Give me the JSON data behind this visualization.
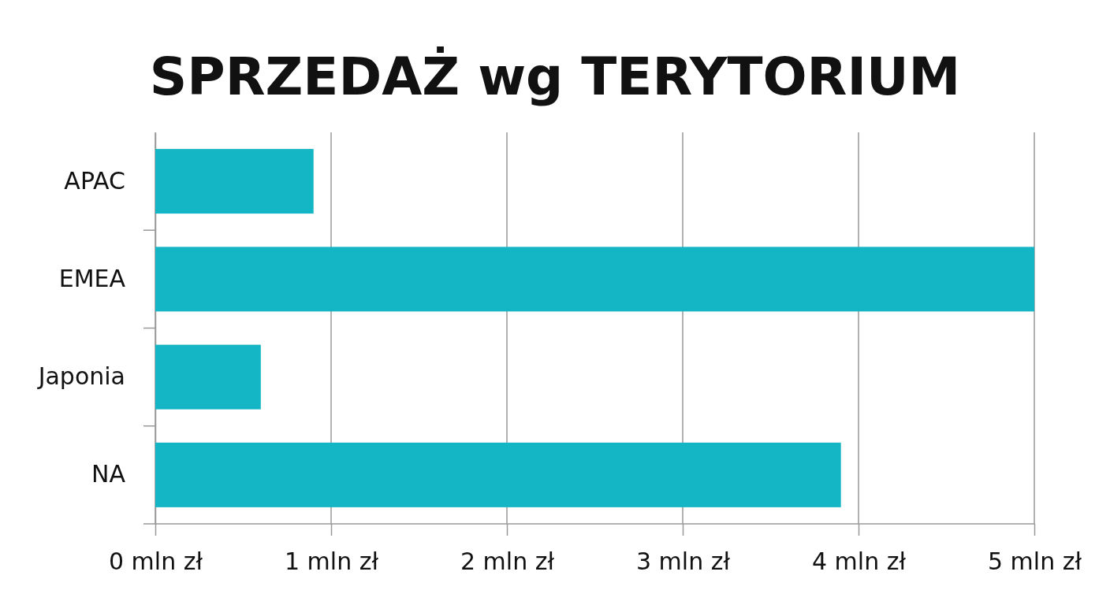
{
  "chart_data": {
    "type": "bar",
    "orientation": "horizontal",
    "title": "SPRZEDAŻ wg TERYTORIUM",
    "categories": [
      "APAC",
      "EMEA",
      "Japonia",
      "NA"
    ],
    "values": [
      0.9,
      5.0,
      0.6,
      3.9
    ],
    "color": "#14b5c4",
    "xlim": [
      0,
      5
    ],
    "xticks": [
      {
        "value": 0,
        "label": "0 mln zł"
      },
      {
        "value": 1,
        "label": "1 mln zł"
      },
      {
        "value": 2,
        "label": "2 mln zł"
      },
      {
        "value": 3,
        "label": "3 mln zł"
      },
      {
        "value": 4,
        "label": "4 mln zł"
      },
      {
        "value": 5,
        "label": "5 mln zł"
      }
    ],
    "grid": "x"
  }
}
